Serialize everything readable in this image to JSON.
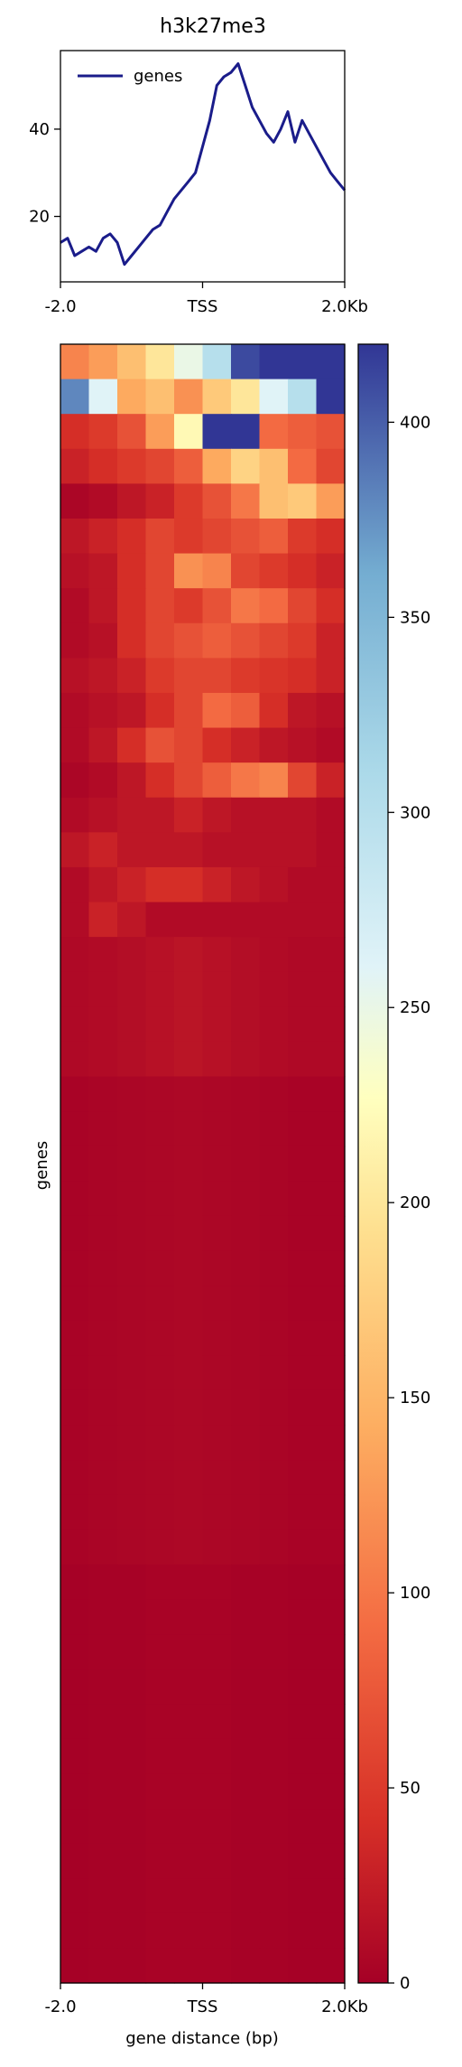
{
  "chart_data": [
    {
      "type": "line",
      "title": "h3k27me3",
      "xlabel": "",
      "ylabel": "",
      "x_ticks": [
        "-2.0",
        "TSS",
        "2.0Kb"
      ],
      "x": [
        -2000,
        -1900,
        -1800,
        -1700,
        -1600,
        -1500,
        -1400,
        -1300,
        -1200,
        -1100,
        -1000,
        -900,
        -800,
        -700,
        -600,
        -500,
        -400,
        -300,
        -200,
        -100,
        0,
        100,
        200,
        300,
        400,
        500,
        600,
        700,
        800,
        900,
        1000,
        1100,
        1200,
        1300,
        1400,
        1500,
        1600,
        1700,
        1800,
        1900,
        2000
      ],
      "ylim": [
        5,
        58
      ],
      "y_ticks": [
        20,
        40
      ],
      "legend": {
        "placement": "top-left"
      },
      "series": [
        {
          "name": "genes",
          "color": "#1a1c8a",
          "values": [
            14,
            15,
            11,
            12,
            13,
            12,
            15,
            16,
            14,
            9,
            11,
            13,
            15,
            17,
            18,
            21,
            24,
            26,
            28,
            30,
            36,
            42,
            50,
            52,
            53,
            55,
            50,
            45,
            42,
            39,
            37,
            40,
            44,
            37,
            42,
            39,
            36,
            33,
            30,
            28,
            26
          ]
        }
      ]
    },
    {
      "type": "heatmap",
      "xlabel": "gene distance (bp)",
      "ylabel": "genes",
      "x_ticks": [
        "-2.0",
        "TSS",
        "2.0Kb"
      ],
      "colorbar": {
        "min": 0,
        "max": 420,
        "ticks": [
          0,
          50,
          100,
          150,
          200,
          250,
          300,
          350,
          400
        ],
        "colormap": "RdYlBu"
      },
      "row_profiles": [
        {
          "rows": 1,
          "level": [
            110,
            130,
            160,
            200,
            250,
            300,
            410,
            420,
            420,
            420
          ]
        },
        {
          "rows": 1,
          "level": [
            380,
            260,
            140,
            160,
            120,
            170,
            200,
            260,
            300,
            420
          ]
        },
        {
          "rows": 1,
          "level": [
            40,
            50,
            70,
            130,
            220,
            420,
            420,
            90,
            80,
            70
          ]
        },
        {
          "rows": 1,
          "level": [
            30,
            40,
            50,
            60,
            80,
            140,
            180,
            160,
            90,
            60
          ]
        },
        {
          "rows": 1,
          "level": [
            5,
            10,
            20,
            30,
            50,
            70,
            100,
            160,
            170,
            130
          ]
        },
        {
          "rows": 1,
          "level": [
            20,
            30,
            40,
            60,
            50,
            60,
            70,
            80,
            50,
            40
          ]
        },
        {
          "rows": 1,
          "level": [
            15,
            20,
            40,
            60,
            120,
            110,
            60,
            50,
            40,
            30
          ]
        },
        {
          "rows": 1,
          "level": [
            10,
            20,
            40,
            60,
            50,
            70,
            100,
            90,
            60,
            40
          ]
        },
        {
          "rows": 1,
          "level": [
            10,
            15,
            40,
            60,
            70,
            80,
            70,
            60,
            50,
            30
          ]
        },
        {
          "rows": 1,
          "level": [
            15,
            20,
            30,
            50,
            60,
            60,
            50,
            45,
            40,
            30
          ]
        },
        {
          "rows": 1,
          "level": [
            10,
            15,
            20,
            40,
            60,
            90,
            80,
            40,
            20,
            15
          ]
        },
        {
          "rows": 1,
          "level": [
            10,
            20,
            40,
            70,
            60,
            40,
            30,
            20,
            15,
            10
          ]
        },
        {
          "rows": 1,
          "level": [
            5,
            10,
            20,
            40,
            60,
            80,
            100,
            110,
            60,
            30
          ]
        },
        {
          "rows": 1,
          "level": [
            10,
            15,
            20,
            20,
            30,
            20,
            15,
            15,
            15,
            10
          ]
        },
        {
          "rows": 1,
          "level": [
            20,
            30,
            20,
            20,
            20,
            15,
            15,
            15,
            15,
            10
          ]
        },
        {
          "rows": 1,
          "level": [
            10,
            20,
            30,
            40,
            40,
            30,
            20,
            15,
            10,
            10
          ]
        },
        {
          "rows": 1,
          "level": [
            10,
            30,
            20,
            10,
            10,
            10,
            10,
            10,
            10,
            10
          ]
        },
        {
          "rows": 4,
          "level": [
            8,
            10,
            12,
            15,
            18,
            15,
            12,
            10,
            8,
            8
          ]
        },
        {
          "rows": 14,
          "level": [
            3,
            4,
            5,
            6,
            7,
            6,
            5,
            4,
            3,
            3
          ]
        },
        {
          "rows": 12,
          "level": [
            1,
            2,
            2,
            3,
            3,
            3,
            2,
            2,
            1,
            1
          ]
        }
      ]
    }
  ]
}
